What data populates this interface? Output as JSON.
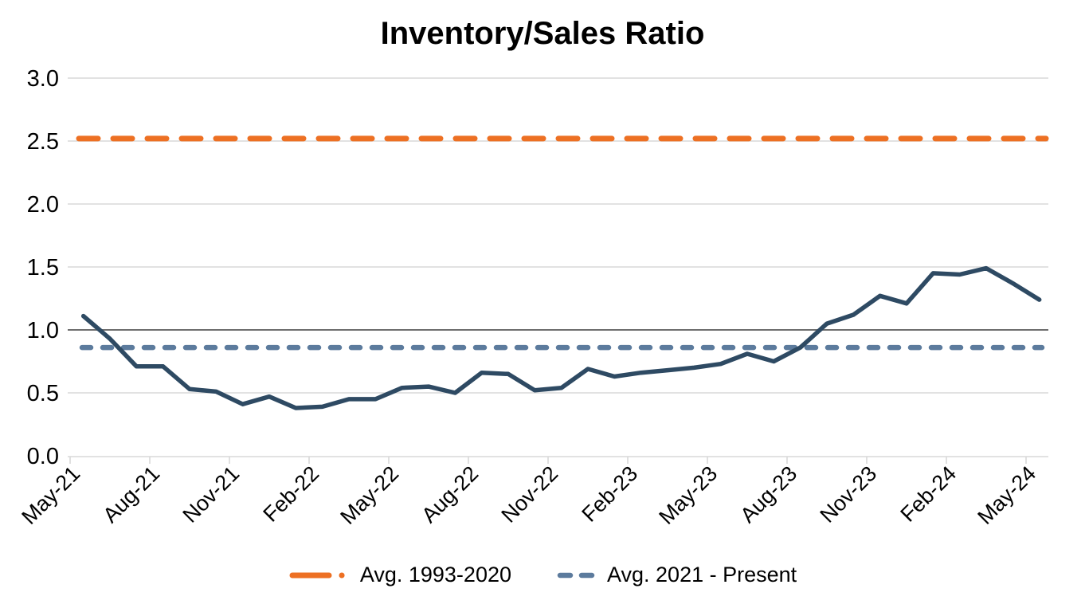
{
  "chart_data": {
    "type": "line",
    "title": "Inventory/Sales Ratio",
    "x": [
      "May-21",
      "Jun-21",
      "Jul-21",
      "Aug-21",
      "Sep-21",
      "Oct-21",
      "Nov-21",
      "Dec-21",
      "Jan-22",
      "Feb-22",
      "Mar-22",
      "Apr-22",
      "May-22",
      "Jun-22",
      "Jul-22",
      "Aug-22",
      "Sep-22",
      "Oct-22",
      "Nov-22",
      "Dec-22",
      "Jan-23",
      "Feb-23",
      "Mar-23",
      "Apr-23",
      "May-23",
      "Jun-23",
      "Jul-23",
      "Aug-23",
      "Sep-23",
      "Oct-23",
      "Nov-23",
      "Dec-23",
      "Jan-24",
      "Feb-24",
      "Mar-24",
      "Apr-24",
      "May-24"
    ],
    "series": [
      {
        "name": "Inventory/Sales Ratio",
        "style": "solid",
        "color": "#2E4A63",
        "values": [
          1.11,
          0.93,
          0.71,
          0.71,
          0.53,
          0.51,
          0.41,
          0.47,
          0.38,
          0.39,
          0.45,
          0.45,
          0.54,
          0.55,
          0.5,
          0.66,
          0.65,
          0.52,
          0.54,
          0.69,
          0.63,
          0.66,
          0.68,
          0.7,
          0.73,
          0.81,
          0.75,
          0.86,
          1.05,
          1.12,
          1.27,
          1.21,
          1.45,
          1.44,
          1.49,
          1.37,
          1.24
        ]
      }
    ],
    "reference_lines": [
      {
        "name": "Avg. 1993-2020",
        "value": 2.52,
        "color": "#ED7023",
        "dash": "24 19",
        "width": 7
      },
      {
        "name": "Avg. 2021 - Present",
        "value": 0.86,
        "color": "#5C7B9D",
        "dash": "11 15",
        "width": 6.5
      }
    ],
    "ylim": [
      0,
      3.0
    ],
    "y_tick_labels": [
      "3.0",
      "2.5",
      "2.0",
      "1.5",
      "1.0",
      "0.5",
      "0.0"
    ],
    "y_tick_values": [
      3.0,
      2.5,
      2.0,
      1.5,
      1.0,
      0.5,
      0.0
    ],
    "x_tick_labels": [
      "May-21",
      "Aug-21",
      "Nov-21",
      "Feb-22",
      "May-22",
      "Aug-22",
      "Nov-22",
      "Feb-23",
      "May-23",
      "Aug-23",
      "Nov-23",
      "Feb-24",
      "May-24"
    ],
    "x_label_every_n_months": 3,
    "grid": "horizontal",
    "emphasized_gridline_value": 1.0,
    "legend": {
      "position": "bottom-center",
      "items": [
        {
          "label": "Avg. 1993-2020",
          "color": "#ED7023",
          "marker": "dash-dot"
        },
        {
          "label": "Avg. 2021 - Present",
          "color": "#5C7B9D",
          "marker": "dashes"
        }
      ]
    }
  }
}
